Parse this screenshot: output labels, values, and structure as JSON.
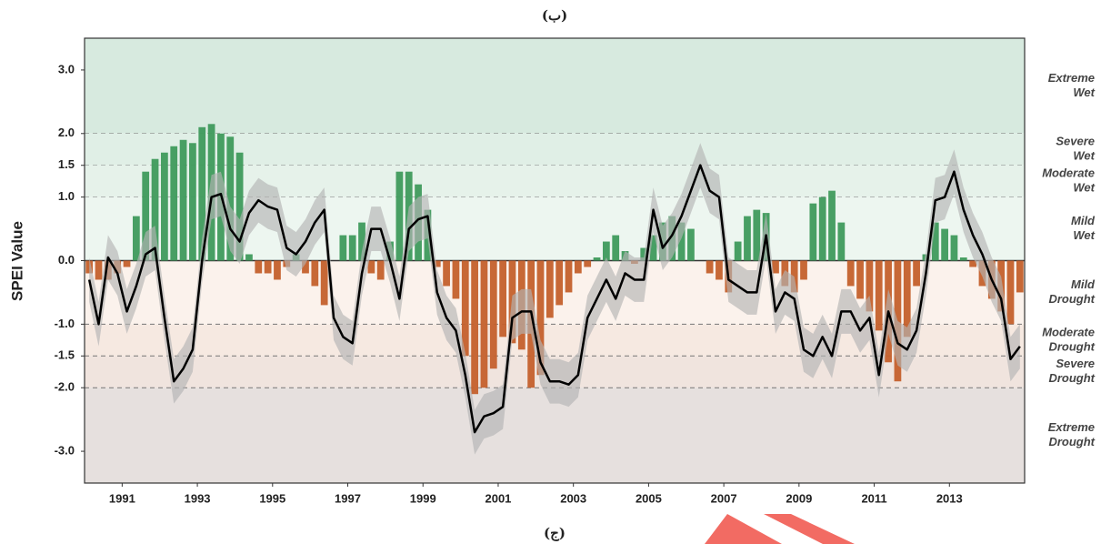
{
  "chart_data": {
    "type": "bar-line",
    "title": "(ب)",
    "caption": "(ج)",
    "y_label": "SPEI Value",
    "xlim": [
      1990,
      2015
    ],
    "ylim": [
      -3.5,
      3.5
    ],
    "xticks": [
      1991,
      1993,
      1995,
      1997,
      1999,
      2001,
      2003,
      2005,
      2007,
      2009,
      2011,
      2013
    ],
    "yticks": [
      {
        "value": 3,
        "label": "3.0"
      },
      {
        "value": 2,
        "label": "2.0"
      },
      1.5,
      {
        "value": 1,
        "label": "1.0"
      },
      {
        "value": 0,
        "label": "0.0"
      },
      {
        "value": -1,
        "label": "-1.0"
      },
      -1.5,
      {
        "value": -2,
        "label": "-2.0"
      },
      {
        "value": -3,
        "label": "-3.0"
      }
    ],
    "bands": [
      {
        "label_lines": [
          "Extreme",
          "Wet"
        ],
        "from": 2,
        "to": 3.5,
        "color": "#d7eadf"
      },
      {
        "label_lines": [
          "Severe",
          "Wet"
        ],
        "from": 1.5,
        "to": 2,
        "color": "#e0efe6"
      },
      {
        "label_lines": [
          "Moderate",
          "Wet"
        ],
        "from": 1,
        "to": 1.5,
        "color": "#e6f2ea"
      },
      {
        "label_lines": [
          "Mild",
          "Wet"
        ],
        "from": 0,
        "to": 1,
        "color": "#edf6f0"
      },
      {
        "label_lines": [
          "Mild",
          "Drought"
        ],
        "from": -1,
        "to": 0,
        "color": "#fbf2ec"
      },
      {
        "label_lines": [
          "Moderate",
          "Drought"
        ],
        "from": -1.5,
        "to": -1,
        "color": "#f6e9e1"
      },
      {
        "label_lines": [
          "Severe",
          "Drought"
        ],
        "from": -2,
        "to": -1.5,
        "color": "#f0e4de"
      },
      {
        "label_lines": [
          "Extreme",
          "Drought"
        ],
        "from": -3.5,
        "to": -2,
        "color": "#e6e0de"
      }
    ],
    "x": [
      1990.125,
      1990.375,
      1990.625,
      1990.875,
      1991.125,
      1991.375,
      1991.625,
      1991.875,
      1992.125,
      1992.375,
      1992.625,
      1992.875,
      1993.125,
      1993.375,
      1993.625,
      1993.875,
      1994.125,
      1994.375,
      1994.625,
      1994.875,
      1995.125,
      1995.375,
      1995.625,
      1995.875,
      1996.125,
      1996.375,
      1996.625,
      1996.875,
      1997.125,
      1997.375,
      1997.625,
      1997.875,
      1998.125,
      1998.375,
      1998.625,
      1998.875,
      1999.125,
      1999.375,
      1999.625,
      1999.875,
      2000.125,
      2000.375,
      2000.625,
      2000.875,
      2001.125,
      2001.375,
      2001.625,
      2001.875,
      2002.125,
      2002.375,
      2002.625,
      2002.875,
      2003.125,
      2003.375,
      2003.625,
      2003.875,
      2004.125,
      2004.375,
      2004.625,
      2004.875,
      2005.125,
      2005.375,
      2005.625,
      2005.875,
      2006.125,
      2006.375,
      2006.625,
      2006.875,
      2007.125,
      2007.375,
      2007.625,
      2007.875,
      2008.125,
      2008.375,
      2008.625,
      2008.875,
      2009.125,
      2009.375,
      2009.625,
      2009.875,
      2010.125,
      2010.375,
      2010.625,
      2010.875,
      2011.125,
      2011.375,
      2011.625,
      2011.875,
      2012.125,
      2012.375,
      2012.625,
      2012.875,
      2013.125,
      2013.375,
      2013.625,
      2013.875,
      2014.125,
      2014.375,
      2014.625,
      2014.875
    ],
    "bars": {
      "positive_color": "#3f9a5c",
      "negative_color": "#c4602c",
      "values": [
        -0.2,
        -0.3,
        -0.3,
        -0.2,
        -0.1,
        0.7,
        1.4,
        1.6,
        1.7,
        1.8,
        1.9,
        1.85,
        2.1,
        2.15,
        2.0,
        1.95,
        1.7,
        0.1,
        -0.2,
        -0.2,
        -0.3,
        -0.1,
        0.1,
        -0.2,
        -0.4,
        -0.7,
        0.0,
        0.4,
        0.4,
        0.6,
        -0.2,
        -0.3,
        0.3,
        1.4,
        1.4,
        1.2,
        0.8,
        -0.1,
        -0.4,
        -0.6,
        -1.5,
        -2.1,
        -2.0,
        -1.7,
        -1.2,
        -1.3,
        -1.4,
        -2.0,
        -1.8,
        -0.9,
        -0.7,
        -0.5,
        -0.2,
        -0.1,
        0.05,
        0.3,
        0.4,
        0.15,
        -0.05,
        0.2,
        0.4,
        0.6,
        0.7,
        0.6,
        0.5,
        0.0,
        -0.2,
        -0.3,
        -0.5,
        0.3,
        0.7,
        0.8,
        0.75,
        -0.2,
        -0.4,
        -0.5,
        -0.3,
        0.9,
        1.0,
        1.1,
        0.6,
        -0.4,
        -0.6,
        -0.8,
        -1.1,
        -1.6,
        -1.9,
        -1.2,
        -0.4,
        0.1,
        0.6,
        0.5,
        0.4,
        0.05,
        -0.1,
        -0.4,
        -0.6,
        -0.8,
        -1.0,
        -0.5
      ]
    },
    "line": {
      "color": "#000000",
      "band_color": "#b4b4b4",
      "uncertainty": 0.35,
      "values": [
        -0.3,
        -1.0,
        0.05,
        -0.2,
        -0.8,
        -0.4,
        0.1,
        0.2,
        -0.9,
        -1.9,
        -1.7,
        -1.4,
        0.0,
        1.0,
        1.05,
        0.5,
        0.3,
        0.75,
        0.95,
        0.85,
        0.8,
        0.2,
        0.1,
        0.3,
        0.6,
        0.8,
        -0.9,
        -1.2,
        -1.3,
        -0.2,
        0.5,
        0.5,
        0.0,
        -0.6,
        0.5,
        0.65,
        0.7,
        -0.5,
        -0.9,
        -1.1,
        -1.8,
        -2.7,
        -2.45,
        -2.4,
        -2.3,
        -0.9,
        -0.8,
        -0.8,
        -1.6,
        -1.9,
        -1.9,
        -1.95,
        -1.8,
        -0.9,
        -0.6,
        -0.3,
        -0.6,
        -0.2,
        -0.3,
        -0.3,
        0.8,
        0.2,
        0.4,
        0.7,
        1.1,
        1.5,
        1.1,
        1.0,
        -0.3,
        -0.4,
        -0.5,
        -0.5,
        0.4,
        -0.8,
        -0.5,
        -0.6,
        -1.4,
        -1.5,
        -1.2,
        -1.5,
        -0.8,
        -0.8,
        -1.1,
        -0.9,
        -1.8,
        -0.8,
        -1.3,
        -1.4,
        -1.1,
        -0.2,
        0.95,
        1.0,
        1.4,
        0.8,
        0.4,
        0.1,
        -0.3,
        -0.6,
        -1.55,
        -1.35
      ]
    }
  }
}
